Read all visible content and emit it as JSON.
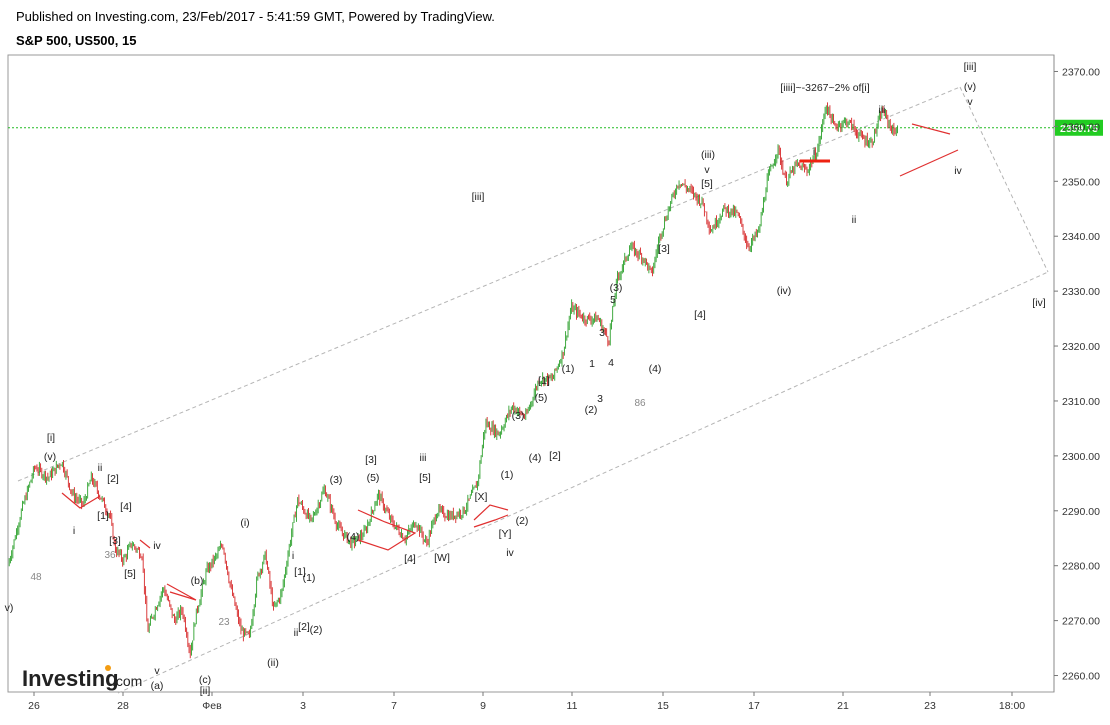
{
  "header": {
    "published": "Published on Investing.com, 23/Feb/2017 - 5:41:59 GMT, Powered by TradingView.",
    "symbol": "S&P 500, US500, 15"
  },
  "logo": {
    "text": "Investing",
    "suffix": ".com"
  },
  "colors": {
    "up": "#2ca02c",
    "down": "#d62728",
    "channel": "#b5b5b5",
    "price_line": "#22bb22",
    "price_tag_bg": "#22cc22",
    "triangle": "#e03030"
  },
  "chart_data": {
    "type": "candlestick",
    "title": "S&P 500, US500, 15",
    "ylim": [
      2257,
      2373
    ],
    "yticks": [
      "2260.00",
      "2270.00",
      "2280.00",
      "2290.00",
      "2300.00",
      "2310.00",
      "2320.00",
      "2330.00",
      "2340.00",
      "2350.00",
      "2360.00",
      "2370.00"
    ],
    "xticks": [
      "26",
      "28",
      "Фев",
      "3",
      "7",
      "9",
      "11",
      "15",
      "17",
      "21",
      "23",
      "18:00"
    ],
    "last_price": "2359.75",
    "price_path": [
      [
        0,
        2280
      ],
      [
        0.5,
        2290
      ],
      [
        1,
        2298
      ],
      [
        1.5,
        2296
      ],
      [
        2,
        2299
      ],
      [
        2.4,
        2293
      ],
      [
        2.8,
        2291
      ],
      [
        3.1,
        2296
      ],
      [
        3.5,
        2292
      ],
      [
        3.8,
        2289
      ],
      [
        4.0,
        2283
      ],
      [
        4.3,
        2281
      ],
      [
        4.6,
        2284
      ],
      [
        5.0,
        2282
      ],
      [
        5.2,
        2268
      ],
      [
        5.4,
        2271
      ],
      [
        5.8,
        2276
      ],
      [
        6.2,
        2270
      ],
      [
        6.5,
        2272
      ],
      [
        6.8,
        2264
      ],
      [
        7.0,
        2271
      ],
      [
        7.4,
        2279
      ],
      [
        7.8,
        2282
      ],
      [
        8.0,
        2284
      ],
      [
        8.3,
        2276
      ],
      [
        8.7,
        2268
      ],
      [
        9.0,
        2267
      ],
      [
        9.3,
        2278
      ],
      [
        9.6,
        2282
      ],
      [
        9.9,
        2272
      ],
      [
        10.2,
        2275
      ],
      [
        10.5,
        2284
      ],
      [
        10.8,
        2292
      ],
      [
        11.3,
        2288
      ],
      [
        11.8,
        2294
      ],
      [
        12.3,
        2287
      ],
      [
        12.8,
        2284
      ],
      [
        13.3,
        2286
      ],
      [
        13.8,
        2293
      ],
      [
        14.3,
        2288
      ],
      [
        14.8,
        2285
      ],
      [
        15.2,
        2288
      ],
      [
        15.6,
        2284
      ],
      [
        16.0,
        2290
      ],
      [
        16.5,
        2289
      ],
      [
        17.0,
        2290
      ],
      [
        17.5,
        2295
      ],
      [
        17.8,
        2306
      ],
      [
        18.3,
        2304
      ],
      [
        18.8,
        2309
      ],
      [
        19.3,
        2307
      ],
      [
        19.8,
        2314
      ],
      [
        20.3,
        2314
      ],
      [
        20.7,
        2319
      ],
      [
        21.0,
        2327
      ],
      [
        21.5,
        2325
      ],
      [
        22.0,
        2325
      ],
      [
        22.4,
        2321
      ],
      [
        22.7,
        2332
      ],
      [
        23.2,
        2338
      ],
      [
        23.7,
        2336
      ],
      [
        24.0,
        2333
      ],
      [
        24.3,
        2340
      ],
      [
        24.7,
        2346
      ],
      [
        25.0,
        2350
      ],
      [
        25.5,
        2348
      ],
      [
        25.9,
        2346
      ],
      [
        26.2,
        2341
      ],
      [
        26.7,
        2345
      ],
      [
        27.2,
        2344
      ],
      [
        27.6,
        2338
      ],
      [
        28.0,
        2341
      ],
      [
        28.3,
        2350
      ],
      [
        28.7,
        2356
      ],
      [
        29.0,
        2350
      ],
      [
        29.4,
        2353
      ],
      [
        29.8,
        2352
      ],
      [
        30.2,
        2356
      ],
      [
        30.5,
        2364
      ],
      [
        30.8,
        2360
      ],
      [
        31.3,
        2361
      ],
      [
        31.8,
        2358
      ],
      [
        32.2,
        2357
      ],
      [
        32.6,
        2363
      ],
      [
        33.0,
        2359
      ],
      [
        33.2,
        2359.75
      ]
    ]
  },
  "annotations": [
    {
      "text": "[i]",
      "c": "dark"
    },
    {
      "text": "(v)",
      "c": "dark"
    },
    {
      "text": "ii",
      "c": "dark"
    },
    {
      "text": "[2]",
      "c": "dark"
    },
    {
      "text": "[4]",
      "c": "dark"
    },
    {
      "text": "[1]",
      "c": "dark"
    },
    {
      "text": "i",
      "c": "dark"
    },
    {
      "text": "[3]",
      "c": "dark"
    },
    {
      "text": "36",
      "c": "grey"
    },
    {
      "text": "[5]",
      "c": "dark"
    },
    {
      "text": "iv",
      "c": "dark"
    },
    {
      "text": "48",
      "c": "grey"
    },
    {
      "text": "v)",
      "c": "dark"
    },
    {
      "text": "(b)",
      "c": "dark"
    },
    {
      "text": "v",
      "c": "dark"
    },
    {
      "text": "(a)",
      "c": "dark"
    },
    {
      "text": "(c)",
      "c": "dark"
    },
    {
      "text": "[ii]",
      "c": "dark"
    },
    {
      "text": "23",
      "c": "grey"
    },
    {
      "text": "(i)",
      "c": "dark"
    },
    {
      "text": "(ii)",
      "c": "dark"
    },
    {
      "text": "i",
      "c": "dark"
    },
    {
      "text": "[1]",
      "c": "dark"
    },
    {
      "text": "(1)",
      "c": "dark"
    },
    {
      "text": "[2]",
      "c": "dark"
    },
    {
      "text": "(2)",
      "c": "dark"
    },
    {
      "text": "ii",
      "c": "dark"
    },
    {
      "text": "(3)",
      "c": "dark"
    },
    {
      "text": "[3]",
      "c": "dark"
    },
    {
      "text": "(5)",
      "c": "dark"
    },
    {
      "text": "(4)",
      "c": "dark"
    },
    {
      "text": "iii",
      "c": "dark"
    },
    {
      "text": "[5]",
      "c": "dark"
    },
    {
      "text": "[4]",
      "c": "dark"
    },
    {
      "text": "[W]",
      "c": "dark"
    },
    {
      "text": "[X]",
      "c": "dark"
    },
    {
      "text": "[Y]",
      "c": "dark"
    },
    {
      "text": "(1)",
      "c": "dark"
    },
    {
      "text": "(2)",
      "c": "dark"
    },
    {
      "text": "iv",
      "c": "dark"
    },
    {
      "text": "(3)",
      "c": "dark"
    },
    {
      "text": "(4)",
      "c": "dark"
    },
    {
      "text": "[2]",
      "c": "dark"
    },
    {
      "text": "(5)",
      "c": "dark"
    },
    {
      "text": "[1]",
      "c": "dark"
    },
    {
      "text": "(1)",
      "c": "dark"
    },
    {
      "text": "(2)",
      "c": "dark"
    },
    {
      "text": "3",
      "c": "dark"
    },
    {
      "text": "1",
      "c": "dark"
    },
    {
      "text": "3",
      "c": "dark"
    },
    {
      "text": "4",
      "c": "dark"
    },
    {
      "text": "5",
      "c": "dark"
    },
    {
      "text": "(3)",
      "c": "dark"
    },
    {
      "text": "86",
      "c": "grey"
    },
    {
      "text": "(4)",
      "c": "dark"
    },
    {
      "text": "[3]",
      "c": "dark"
    },
    {
      "text": "[4]",
      "c": "dark"
    },
    {
      "text": "(iii)",
      "c": "dark"
    },
    {
      "text": "v",
      "c": "dark"
    },
    {
      "text": "[5]",
      "c": "dark"
    },
    {
      "text": "(iv)",
      "c": "dark"
    },
    {
      "text": "i",
      "c": "dark"
    },
    {
      "text": "ii",
      "c": "dark"
    },
    {
      "text": "iii",
      "c": "dark"
    },
    {
      "text": "iv",
      "c": "dark"
    },
    {
      "text": "[iiii]~-3267~2% of[i]",
      "c": "dark"
    },
    {
      "text": "[iii]",
      "c": "dark"
    },
    {
      "text": "(v)",
      "c": "dark"
    },
    {
      "text": "v",
      "c": "dark"
    },
    {
      "text": "[iv]",
      "c": "dark"
    },
    {
      "text": "[iii]",
      "c": "dark"
    }
  ]
}
